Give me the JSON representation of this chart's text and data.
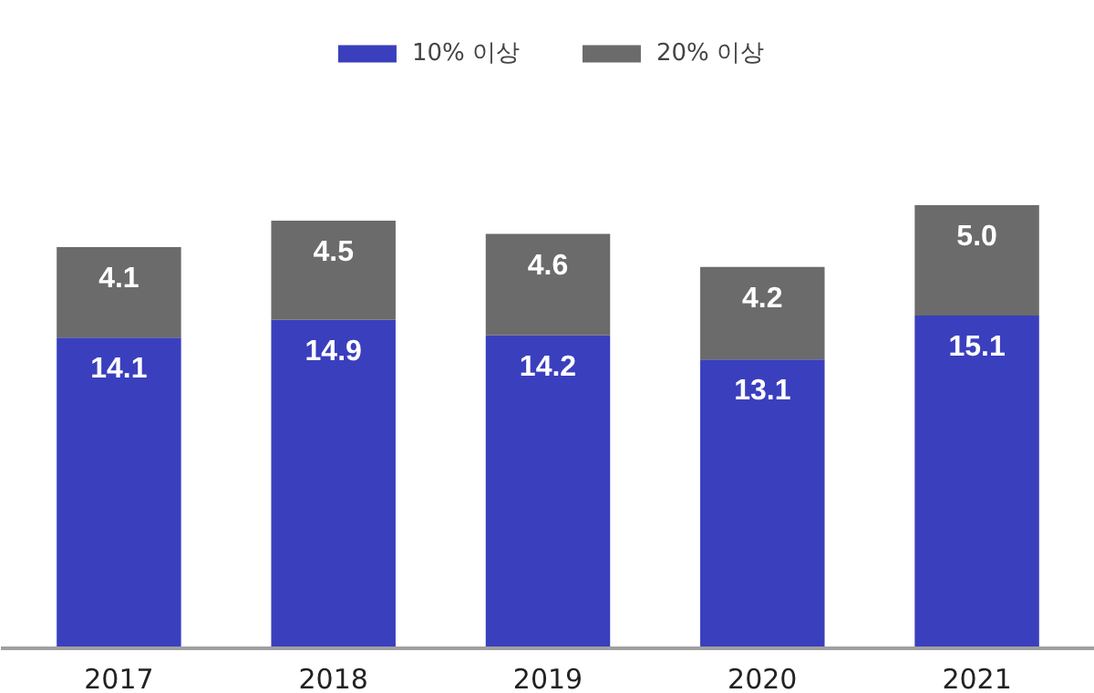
{
  "chart_data": {
    "type": "bar",
    "stacked": true,
    "data_labels": true,
    "legend": "top",
    "grid": false,
    "categories": [
      "2017",
      "2018",
      "2019",
      "2020",
      "2021"
    ],
    "series": [
      {
        "name": "10% 이상",
        "color": "#3a3fbd",
        "values": [
          14.1,
          14.9,
          14.2,
          13.1,
          15.1
        ]
      },
      {
        "name": "20% 이상",
        "color": "#6b6b6b",
        "values": [
          4.1,
          4.5,
          4.6,
          4.2,
          5.0
        ],
        "value_labels": [
          "4.1",
          "4.5",
          "4.6",
          "4.2",
          "5.0"
        ]
      }
    ]
  }
}
